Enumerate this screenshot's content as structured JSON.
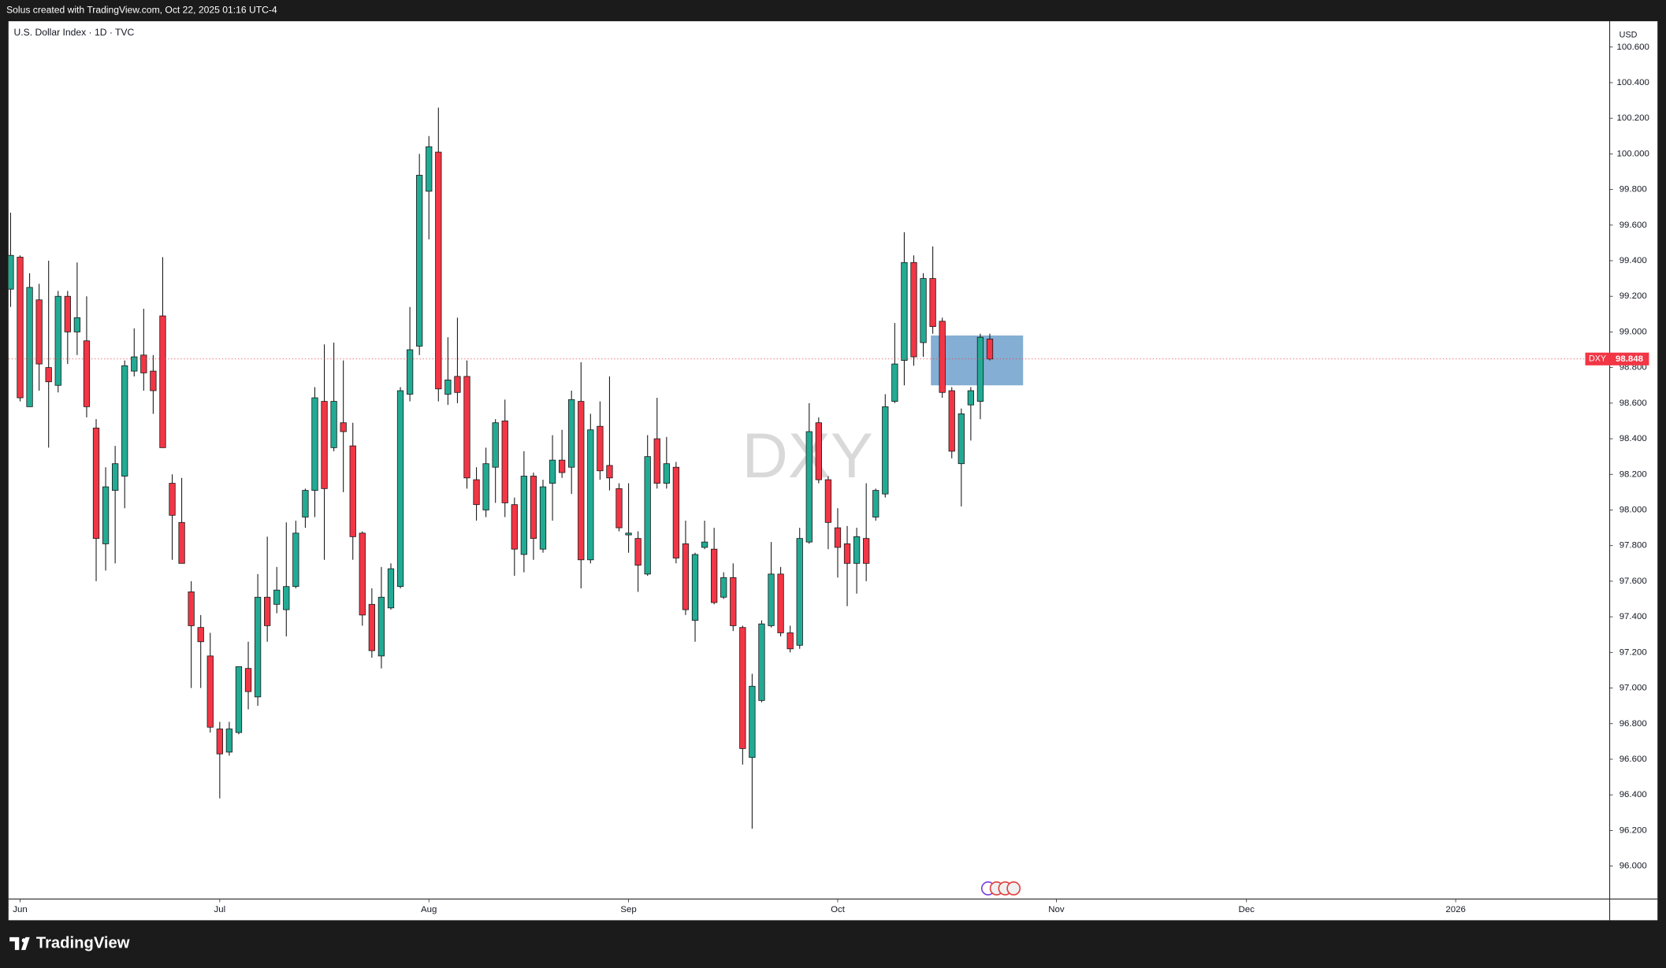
{
  "header": {
    "text": "Solus created with TradingView.com, Oct 22, 2025 01:16 UTC-4"
  },
  "footer": {
    "logo": "TradingView"
  },
  "chart_data": {
    "type": "candlestick",
    "title": "U.S. Dollar Index · 1D · TVC",
    "watermark": "DXY",
    "currency": "USD",
    "symbol_tag": "DXY",
    "last_price": 98.848,
    "up_color": "#22ab94",
    "down_color": "#f23645",
    "grid": false,
    "x": [
      0,
      1,
      2,
      3,
      4,
      5,
      6,
      7,
      8,
      9,
      10,
      11,
      12,
      13,
      14,
      15,
      16,
      17,
      18,
      19,
      20,
      21,
      22,
      23,
      24,
      25,
      26,
      27,
      28,
      29,
      30,
      31,
      32,
      33,
      34,
      35,
      36,
      37,
      38,
      39,
      40,
      41,
      42,
      43,
      44,
      45,
      46,
      47,
      48,
      49,
      50,
      51,
      52,
      53,
      54,
      55,
      56,
      57,
      58,
      59,
      60,
      61,
      62,
      63,
      64,
      65,
      66,
      67,
      68,
      69,
      70,
      71,
      72,
      73,
      74,
      75,
      76,
      77,
      78,
      79,
      80,
      81,
      82,
      83,
      84,
      85,
      86,
      87,
      88,
      89,
      90,
      91,
      92,
      93,
      94,
      95,
      96,
      97,
      98,
      99,
      100,
      101,
      102,
      103
    ],
    "open": [
      99.24,
      99.42,
      98.58,
      99.18,
      98.8,
      98.7,
      99.2,
      99.0,
      98.95,
      98.46,
      97.81,
      98.11,
      98.19,
      98.78,
      98.87,
      98.78,
      99.09,
      98.15,
      97.93,
      97.54,
      97.34,
      97.18,
      96.77,
      96.64,
      96.75,
      97.11,
      96.95,
      97.51,
      97.47,
      97.44,
      97.57,
      97.96,
      98.11,
      98.61,
      98.35,
      98.49,
      98.36,
      97.87,
      97.47,
      97.18,
      97.45,
      97.57,
      98.65,
      98.92,
      99.79,
      100.01,
      98.65,
      98.75,
      98.75,
      98.17,
      98.0,
      98.24,
      98.5,
      98.03,
      97.75,
      98.19,
      97.78,
      98.15,
      98.28,
      98.24,
      98.61,
      97.72,
      98.47,
      98.25,
      98.12,
      97.86,
      97.84,
      97.64,
      98.4,
      98.15,
      98.24,
      97.81,
      97.38,
      97.79,
      97.78,
      97.51,
      97.62,
      97.34,
      96.61,
      96.93,
      97.35,
      97.64,
      97.31,
      97.24,
      97.82,
      98.49,
      98.17,
      97.9,
      97.81,
      97.7,
      97.84,
      97.96,
      98.09,
      98.61,
      98.84,
      99.39,
      98.94,
      99.3,
      99.06,
      98.67,
      98.26,
      98.59,
      98.61,
      98.96
    ],
    "high": [
      99.67,
      99.43,
      99.33,
      99.27,
      99.4,
      99.23,
      99.23,
      99.39,
      99.2,
      98.51,
      98.24,
      98.36,
      98.84,
      99.02,
      99.13,
      98.87,
      99.42,
      98.2,
      98.18,
      97.6,
      97.41,
      97.31,
      96.81,
      96.81,
      97.12,
      97.26,
      97.64,
      97.85,
      97.68,
      97.93,
      97.94,
      98.12,
      98.69,
      98.93,
      98.94,
      98.84,
      98.49,
      97.88,
      97.56,
      97.68,
      97.7,
      98.69,
      99.14,
      100.0,
      100.1,
      100.26,
      98.97,
      99.08,
      98.84,
      98.24,
      98.35,
      98.51,
      98.62,
      98.07,
      98.33,
      98.21,
      98.17,
      98.42,
      98.45,
      98.67,
      98.83,
      98.54,
      98.61,
      98.75,
      98.15,
      98.15,
      97.88,
      98.42,
      98.63,
      98.41,
      98.27,
      97.94,
      97.76,
      97.94,
      97.9,
      97.65,
      97.7,
      97.35,
      97.08,
      97.38,
      97.82,
      97.68,
      97.35,
      97.9,
      98.6,
      98.52,
      98.19,
      98.01,
      97.91,
      97.9,
      98.15,
      98.12,
      98.65,
      99.05,
      99.56,
      99.43,
      99.33,
      99.48,
      99.08,
      98.69,
      98.57,
      98.69,
      98.99,
      98.99
    ],
    "low": [
      99.14,
      98.61,
      98.58,
      98.67,
      98.35,
      98.66,
      98.82,
      98.87,
      98.52,
      97.6,
      97.66,
      97.7,
      98.01,
      98.75,
      98.67,
      98.54,
      98.35,
      97.72,
      97.7,
      97.0,
      97.0,
      96.75,
      96.38,
      96.62,
      96.74,
      96.88,
      96.9,
      97.26,
      97.42,
      97.29,
      97.56,
      97.9,
      97.96,
      97.72,
      98.33,
      98.1,
      97.72,
      97.35,
      97.17,
      97.11,
      97.44,
      97.56,
      98.61,
      98.87,
      99.52,
      98.61,
      98.59,
      98.6,
      98.12,
      97.94,
      97.96,
      98.04,
      97.96,
      97.63,
      97.65,
      97.72,
      97.76,
      97.94,
      98.18,
      98.09,
      97.56,
      97.7,
      98.17,
      98.11,
      97.88,
      97.76,
      97.54,
      97.63,
      98.12,
      98.12,
      97.7,
      97.41,
      97.26,
      97.78,
      97.47,
      97.5,
      97.32,
      96.57,
      96.21,
      96.92,
      97.34,
      97.29,
      97.2,
      97.22,
      97.81,
      98.15,
      97.78,
      97.62,
      97.46,
      97.53,
      97.6,
      97.94,
      98.07,
      98.6,
      98.7,
      98.81,
      98.86,
      98.99,
      98.63,
      98.29,
      98.02,
      98.39,
      98.51,
      98.84
    ],
    "close": [
      99.43,
      98.63,
      99.25,
      98.82,
      98.72,
      99.2,
      99.0,
      99.08,
      98.58,
      97.84,
      98.13,
      98.26,
      98.81,
      98.86,
      98.77,
      98.67,
      98.35,
      97.97,
      97.7,
      97.35,
      97.26,
      96.78,
      96.63,
      96.77,
      97.12,
      96.98,
      97.51,
      97.35,
      97.55,
      97.57,
      97.87,
      98.11,
      98.63,
      98.12,
      98.61,
      98.44,
      97.85,
      97.41,
      97.21,
      97.51,
      97.67,
      98.67,
      98.9,
      99.88,
      100.04,
      98.68,
      98.73,
      98.66,
      98.18,
      98.03,
      98.26,
      98.49,
      98.04,
      97.78,
      98.19,
      97.84,
      98.13,
      98.28,
      98.21,
      98.62,
      97.72,
      98.45,
      98.22,
      98.18,
      97.9,
      97.87,
      97.69,
      98.3,
      98.15,
      98.26,
      97.73,
      97.44,
      97.75,
      97.82,
      97.48,
      97.62,
      97.35,
      96.66,
      97.01,
      97.36,
      97.64,
      97.31,
      97.22,
      97.84,
      98.44,
      98.17,
      97.93,
      97.79,
      97.7,
      97.85,
      97.7,
      98.11,
      98.58,
      98.82,
      99.39,
      98.86,
      99.3,
      99.03,
      98.66,
      98.33,
      98.54,
      98.67,
      98.97,
      98.848
    ],
    "xlim": [
      -0.22,
      168.2
    ],
    "xticks": [
      {
        "value": 1,
        "label": "Jun"
      },
      {
        "value": 22,
        "label": "Jul"
      },
      {
        "value": 44,
        "label": "Aug"
      },
      {
        "value": 65,
        "label": "Sep"
      },
      {
        "value": 87,
        "label": "Oct"
      },
      {
        "value": 110,
        "label": "Nov"
      },
      {
        "value": 130,
        "label": "Dec"
      },
      {
        "value": 152,
        "label": "2026"
      }
    ],
    "ylim": [
      95.815,
      100.745
    ],
    "yticks": [
      {
        "value": 96.0,
        "label": "96.000"
      },
      {
        "value": 96.2,
        "label": "96.200"
      },
      {
        "value": 96.4,
        "label": "96.400"
      },
      {
        "value": 96.6,
        "label": "96.600"
      },
      {
        "value": 96.8,
        "label": "96.800"
      },
      {
        "value": 97.0,
        "label": "97.000"
      },
      {
        "value": 97.2,
        "label": "97.200"
      },
      {
        "value": 97.4,
        "label": "97.400"
      },
      {
        "value": 97.6,
        "label": "97.600"
      },
      {
        "value": 97.8,
        "label": "97.800"
      },
      {
        "value": 98.0,
        "label": "98.000"
      },
      {
        "value": 98.2,
        "label": "98.200"
      },
      {
        "value": 98.4,
        "label": "98.400"
      },
      {
        "value": 98.6,
        "label": "98.600"
      },
      {
        "value": 98.8,
        "label": "98.800"
      },
      {
        "value": 99.0,
        "label": "99.000"
      },
      {
        "value": 99.2,
        "label": "99.200"
      },
      {
        "value": 99.4,
        "label": "99.400"
      },
      {
        "value": 99.6,
        "label": "99.600"
      },
      {
        "value": 99.8,
        "label": "99.800"
      },
      {
        "value": 100.0,
        "label": "100.000"
      },
      {
        "value": 100.2,
        "label": "100.200"
      },
      {
        "value": 100.4,
        "label": "100.400"
      },
      {
        "value": 100.6,
        "label": "100.600"
      }
    ],
    "highlight_box": {
      "x0": 96.8,
      "x1": 106.5,
      "y0": 98.7,
      "y1": 98.98,
      "color": "#5b93c4"
    }
  }
}
